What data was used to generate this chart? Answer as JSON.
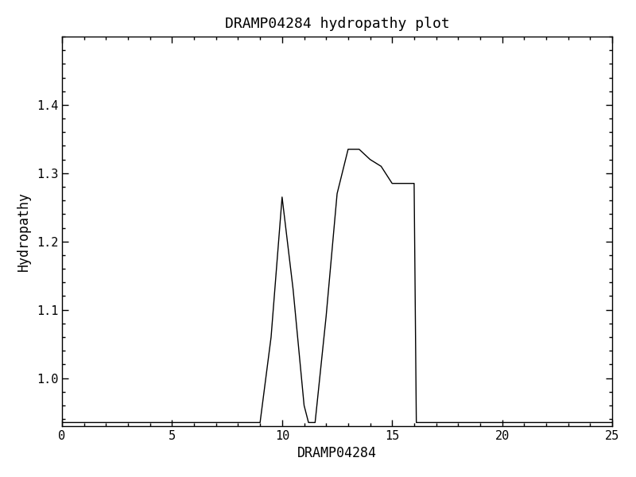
{
  "title": "DRAMP04284 hydropathy plot",
  "xlabel": "DRAMP04284",
  "ylabel": "Hydropathy",
  "xlim": [
    0,
    25
  ],
  "ylim": [
    0.93,
    1.5
  ],
  "yticks": [
    1.0,
    1.1,
    1.2,
    1.3,
    1.4
  ],
  "xticks": [
    0,
    5,
    10,
    15,
    20,
    25
  ],
  "background_color": "#ffffff",
  "line_color": "#000000",
  "line_width": 1.0,
  "x": [
    0,
    9.0,
    9.5,
    10.0,
    10.5,
    11.0,
    11.2,
    11.5,
    12.0,
    12.5,
    13.0,
    13.5,
    14.0,
    14.5,
    15.0,
    15.5,
    16.0,
    16.1,
    25
  ],
  "y": [
    0.935,
    0.935,
    1.06,
    1.265,
    1.13,
    0.96,
    0.935,
    0.935,
    1.09,
    1.27,
    1.335,
    1.335,
    1.32,
    1.31,
    1.285,
    1.285,
    1.285,
    0.935,
    0.935
  ]
}
